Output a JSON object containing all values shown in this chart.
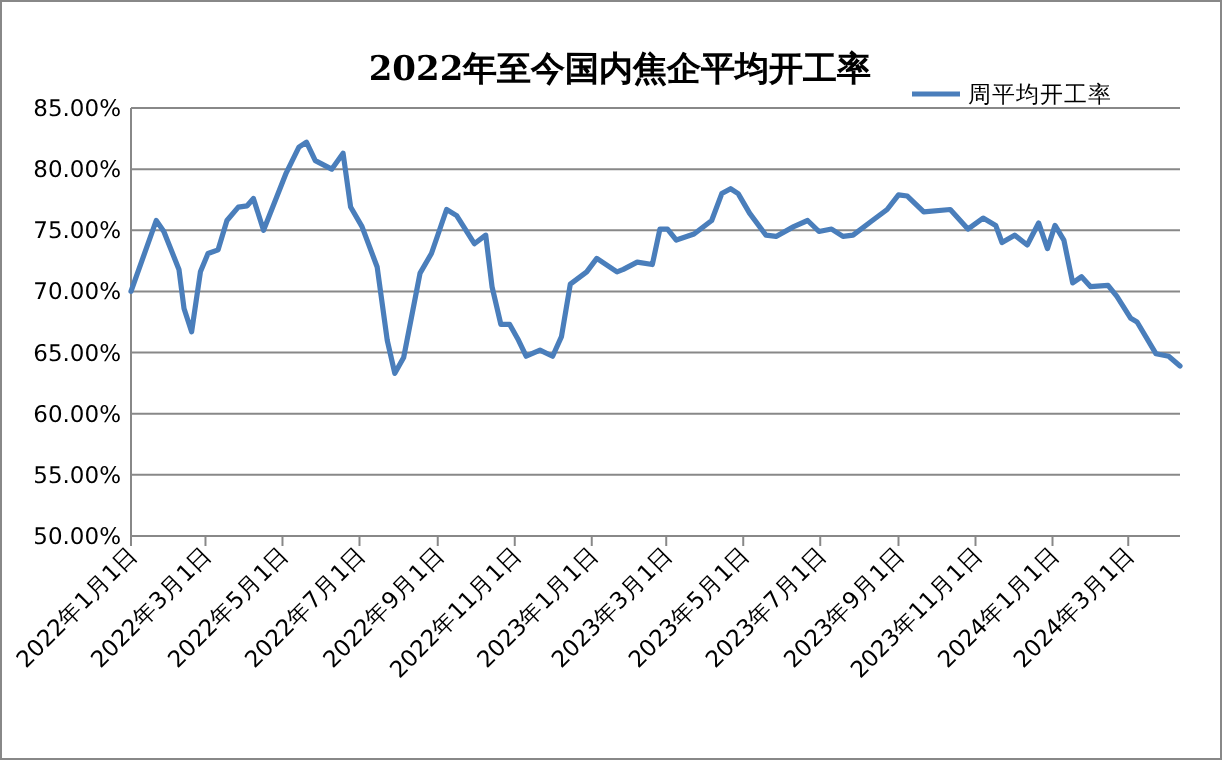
{
  "chart_data": {
    "type": "line",
    "title": "2022年至今国内焦企平均开工率",
    "legend": "top right",
    "grid": "y",
    "marker": "none",
    "line_style": "solid",
    "xlim": [
      "2022-01-01",
      "2024-04-11"
    ],
    "ylim": [
      50,
      85
    ],
    "yticks": [
      {
        "value": 50,
        "label": "50.00%"
      },
      {
        "value": 55,
        "label": "55.00%"
      },
      {
        "value": 60,
        "label": "60.00%"
      },
      {
        "value": 65,
        "label": "65.00%"
      },
      {
        "value": 70,
        "label": "70.00%"
      },
      {
        "value": 75,
        "label": "75.00%"
      },
      {
        "value": 80,
        "label": "80.00%"
      },
      {
        "value": 85,
        "label": "85.00%"
      }
    ],
    "xticks": [
      {
        "value": "2022-01-01",
        "label": "2022年1月1日"
      },
      {
        "value": "2022-03-01",
        "label": "2022年3月1日"
      },
      {
        "value": "2022-05-01",
        "label": "2022年5月1日"
      },
      {
        "value": "2022-07-01",
        "label": "2022年7月1日"
      },
      {
        "value": "2022-09-01",
        "label": "2022年9月1日"
      },
      {
        "value": "2022-11-01",
        "label": "2022年11月1日"
      },
      {
        "value": "2023-01-01",
        "label": "2023年1月1日"
      },
      {
        "value": "2023-03-01",
        "label": "2023年3月1日"
      },
      {
        "value": "2023-05-01",
        "label": "2023年5月1日"
      },
      {
        "value": "2023-07-01",
        "label": "2023年7月1日"
      },
      {
        "value": "2023-09-01",
        "label": "2023年9月1日"
      },
      {
        "value": "2023-11-01",
        "label": "2023年11月1日"
      },
      {
        "value": "2024-01-01",
        "label": "2024年1月1日"
      },
      {
        "value": "2024-03-01",
        "label": "2024年3月1日"
      }
    ],
    "x": [
      "2022-01-01",
      "2022-01-21",
      "2022-01-27",
      "2022-02-08",
      "2022-02-12",
      "2022-02-18",
      "2022-02-25",
      "2022-03-03",
      "2022-03-11",
      "2022-03-18",
      "2022-03-27",
      "2022-04-03",
      "2022-04-08",
      "2022-04-16",
      "2022-05-04",
      "2022-05-14",
      "2022-05-20",
      "2022-05-27",
      "2022-06-09",
      "2022-06-18",
      "2022-06-24",
      "2022-07-03",
      "2022-07-15",
      "2022-07-23",
      "2022-07-29",
      "2022-08-05",
      "2022-08-18",
      "2022-08-27",
      "2022-09-08",
      "2022-09-16",
      "2022-09-30",
      "2022-10-09",
      "2022-10-14",
      "2022-10-21",
      "2022-10-28",
      "2022-11-04",
      "2022-11-10",
      "2022-11-21",
      "2022-12-01",
      "2022-12-08",
      "2022-12-15",
      "2022-12-28",
      "2023-01-05",
      "2023-01-21",
      "2023-01-26",
      "2023-02-06",
      "2023-02-18",
      "2023-02-24",
      "2023-03-02",
      "2023-03-09",
      "2023-03-23",
      "2023-04-06",
      "2023-04-14",
      "2023-04-21",
      "2023-04-27",
      "2023-05-06",
      "2023-05-19",
      "2023-05-27",
      "2023-06-10",
      "2023-06-21",
      "2023-06-30",
      "2023-07-10",
      "2023-07-19",
      "2023-07-27",
      "2023-08-10",
      "2023-08-23",
      "2023-09-01",
      "2023-09-08",
      "2023-09-21",
      "2023-10-12",
      "2023-10-26",
      "2023-11-07",
      "2023-11-17",
      "2023-11-22",
      "2023-12-02",
      "2023-12-12",
      "2023-12-21",
      "2023-12-28",
      "2024-01-03",
      "2024-01-10",
      "2024-01-17",
      "2024-01-24",
      "2024-01-31",
      "2024-02-14",
      "2024-02-21",
      "2024-03-03",
      "2024-03-08",
      "2024-03-23",
      "2024-04-02",
      "2024-04-11"
    ],
    "series": [
      {
        "name": "周平均开工率",
        "color": "#4a7ebb",
        "values": [
          70.0,
          75.8,
          74.9,
          71.8,
          68.6,
          66.7,
          71.6,
          73.1,
          73.4,
          75.8,
          76.9,
          77.0,
          77.6,
          75.0,
          79.7,
          81.8,
          82.2,
          80.7,
          80.0,
          81.3,
          76.9,
          75.3,
          72.0,
          66.0,
          63.3,
          64.6,
          71.5,
          73.1,
          76.7,
          76.2,
          73.9,
          74.6,
          70.4,
          67.3,
          67.3,
          66.0,
          64.7,
          65.2,
          64.7,
          66.3,
          70.6,
          71.6,
          72.7,
          71.6,
          71.8,
          72.4,
          72.2,
          75.1,
          75.1,
          74.2,
          74.7,
          75.8,
          78.0,
          78.4,
          78.0,
          76.4,
          74.6,
          74.5,
          75.3,
          75.8,
          74.9,
          75.1,
          74.5,
          74.6,
          75.7,
          76.7,
          77.9,
          77.8,
          76.5,
          76.7,
          75.1,
          76.0,
          75.4,
          74.0,
          74.6,
          73.8,
          75.6,
          73.5,
          75.4,
          74.2,
          70.7,
          71.2,
          70.4,
          70.5,
          69.6,
          67.8,
          67.5,
          64.9,
          64.7,
          63.9
        ]
      }
    ]
  }
}
